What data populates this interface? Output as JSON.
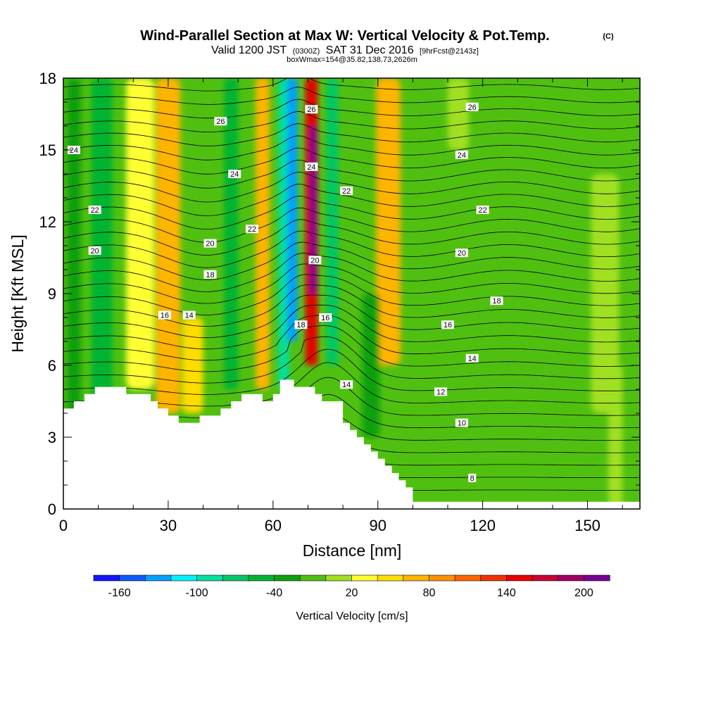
{
  "title": {
    "main": "Wind-Parallel Section at Max W: Vertical Velocity & Pot.Temp.",
    "copyright": "(C)",
    "valid_pre": "Valid 1200 JST",
    "valid_z": "(0300Z)",
    "valid_date": "SAT 31 Dec 2016",
    "fcst": "[9hrFcst@2143z]",
    "box": "boxWmax=154@35.82,138.73,2626m"
  },
  "chart_data": {
    "type": "heatmap",
    "xlabel": "Distance [nm]",
    "ylabel": "Height [Kft MSL]",
    "xlim": [
      0,
      165
    ],
    "ylim": [
      0,
      18
    ],
    "x_ticks": [
      0,
      30,
      60,
      90,
      120,
      150
    ],
    "x_tick_labels": [
      "0",
      "30",
      "60",
      "90",
      "120",
      "150"
    ],
    "y_ticks": [
      0,
      3,
      6,
      9,
      12,
      15,
      18
    ],
    "y_tick_labels": [
      "0",
      "3",
      "6",
      "9",
      "12",
      "15",
      "18"
    ],
    "colorbar": {
      "label": "Vertical Velocity [cm/s]",
      "boundaries": [
        -180,
        -160,
        -140,
        -120,
        -100,
        -80,
        -60,
        -40,
        -20,
        0,
        20,
        40,
        60,
        80,
        100,
        120,
        140,
        160,
        180,
        200,
        220
      ],
      "colors": [
        "#1414ff",
        "#0a5aff",
        "#00a0ff",
        "#00f0ff",
        "#00e0a0",
        "#00c864",
        "#00b432",
        "#10a010",
        "#50c010",
        "#a0e020",
        "#ffff30",
        "#ffdc00",
        "#ffb400",
        "#ff9100",
        "#ff6400",
        "#f03200",
        "#e60000",
        "#c80032",
        "#a00064",
        "#780096"
      ],
      "tick_values": [
        -160,
        -100,
        -40,
        20,
        80,
        140,
        200
      ],
      "tick_labels": [
        "-160",
        "-100",
        "-40",
        "20",
        "80",
        "140",
        "200"
      ]
    },
    "velocity_features": [
      {
        "x": 3,
        "z_min": 0,
        "z_max": 18,
        "width_nm": 4,
        "w": -40
      },
      {
        "x": 11,
        "z_min": 4,
        "z_max": 18,
        "width_nm": 6,
        "w": -45
      },
      {
        "x": 22,
        "z_min": 5,
        "z_max": 18,
        "width_nm": 8,
        "w": 35
      },
      {
        "x": 30,
        "z_min": 4,
        "z_max": 18,
        "width_nm": 7,
        "w": 65
      },
      {
        "x": 37,
        "z_min": 4,
        "z_max": 8,
        "width_nm": 6,
        "w": 40
      },
      {
        "x": 48,
        "z_min": 5,
        "z_max": 18,
        "width_nm": 4,
        "w": -45
      },
      {
        "x": 57,
        "z_min": 5,
        "z_max": 18,
        "width_nm": 4,
        "w": 60
      },
      {
        "x": 63,
        "z_min": 5,
        "z_max": 18,
        "width_nm": 3,
        "w": -95
      },
      {
        "x": 65.5,
        "z_min": 7,
        "z_max": 18,
        "width_nm": 3,
        "w": -140
      },
      {
        "x": 71,
        "z_min": 6,
        "z_max": 18,
        "width_nm": 3.5,
        "w": 150
      },
      {
        "x": 71.5,
        "z_min": 9,
        "z_max": 16,
        "width_nm": 1.8,
        "w": 200
      },
      {
        "x": 77,
        "z_min": 6,
        "z_max": 18,
        "width_nm": 3.5,
        "w": -75
      },
      {
        "x": 93,
        "z_min": 6,
        "z_max": 18,
        "width_nm": 7,
        "w": 65
      },
      {
        "x": 88,
        "z_min": 3,
        "z_max": 9,
        "width_nm": 5,
        "w": -30
      },
      {
        "x": 113,
        "z_min": 15,
        "z_max": 18,
        "width_nm": 6,
        "w": 15
      },
      {
        "x": 155,
        "z_min": 4,
        "z_max": 14,
        "width_nm": 8,
        "w": 15
      },
      {
        "x": 158,
        "z_min": 0,
        "z_max": 6,
        "width_nm": 4,
        "w": 15
      }
    ],
    "terrain": {
      "x": [
        0,
        3,
        3,
        6,
        6,
        9,
        9,
        18,
        18,
        25,
        25,
        27,
        27,
        30,
        30,
        33,
        33,
        39,
        39,
        45,
        45,
        48,
        48,
        51,
        51,
        57,
        57,
        60,
        60,
        62,
        62,
        66,
        66,
        72,
        72,
        74,
        74,
        80,
        80,
        82,
        82,
        84,
        84,
        86,
        86,
        88,
        88,
        90,
        90,
        92,
        92,
        94,
        94,
        96,
        96,
        98,
        98,
        100,
        100,
        165
      ],
      "z": [
        4.2,
        4.2,
        4.5,
        4.5,
        4.8,
        4.8,
        5.1,
        5.1,
        4.8,
        4.8,
        4.5,
        4.5,
        4.2,
        4.2,
        3.9,
        3.9,
        3.6,
        3.6,
        3.9,
        3.9,
        4.2,
        4.2,
        4.5,
        4.5,
        4.8,
        4.8,
        4.5,
        4.5,
        4.8,
        4.8,
        5.4,
        5.4,
        5.1,
        5.1,
        4.8,
        4.8,
        4.5,
        4.5,
        3.6,
        3.6,
        3.3,
        3.3,
        3.0,
        3.0,
        2.7,
        2.7,
        2.4,
        2.4,
        2.1,
        2.1,
        1.8,
        1.8,
        1.5,
        1.5,
        1.2,
        1.2,
        0.9,
        0.9,
        0.3,
        0.3
      ]
    },
    "isentropes": {
      "theta_min": -8,
      "theta_max": 30,
      "step": 1,
      "labels": [
        {
          "x": 3,
          "z": 15.0,
          "text": "24"
        },
        {
          "x": 9,
          "z": 12.5,
          "text": "22"
        },
        {
          "x": 9,
          "z": 10.8,
          "text": "20"
        },
        {
          "x": 45,
          "z": 16.2,
          "text": "26"
        },
        {
          "x": 49,
          "z": 14.0,
          "text": "24"
        },
        {
          "x": 54,
          "z": 11.7,
          "text": "22"
        },
        {
          "x": 42,
          "z": 11.1,
          "text": "20"
        },
        {
          "x": 42,
          "z": 9.8,
          "text": "18"
        },
        {
          "x": 29,
          "z": 8.1,
          "text": "16"
        },
        {
          "x": 36,
          "z": 8.1,
          "text": "14"
        },
        {
          "x": 71,
          "z": 16.7,
          "text": "26"
        },
        {
          "x": 71,
          "z": 14.3,
          "text": "24"
        },
        {
          "x": 81,
          "z": 13.3,
          "text": "22"
        },
        {
          "x": 72,
          "z": 10.4,
          "text": "20"
        },
        {
          "x": 68,
          "z": 7.7,
          "text": "18"
        },
        {
          "x": 75,
          "z": 8.0,
          "text": "16"
        },
        {
          "x": 81,
          "z": 5.2,
          "text": "14"
        },
        {
          "x": 117,
          "z": 16.8,
          "text": "26"
        },
        {
          "x": 114,
          "z": 14.8,
          "text": "24"
        },
        {
          "x": 120,
          "z": 12.5,
          "text": "22"
        },
        {
          "x": 114,
          "z": 10.7,
          "text": "20"
        },
        {
          "x": 124,
          "z": 8.7,
          "text": "18"
        },
        {
          "x": 110,
          "z": 7.7,
          "text": "16"
        },
        {
          "x": 117,
          "z": 6.3,
          "text": "14"
        },
        {
          "x": 108,
          "z": 4.9,
          "text": "12"
        },
        {
          "x": 114,
          "z": 3.6,
          "text": "10"
        },
        {
          "x": 117,
          "z": 1.3,
          "text": "8"
        }
      ]
    }
  }
}
